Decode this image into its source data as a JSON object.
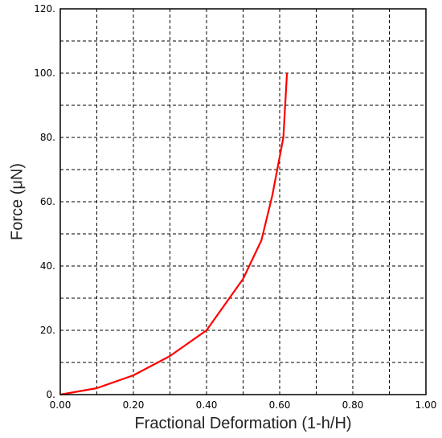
{
  "chart_data": {
    "type": "line",
    "title": "",
    "xlabel": "Fractional Deformation (1-h/H)",
    "ylabel": "Force (μN)",
    "xlim": [
      0.0,
      1.0
    ],
    "ylim": [
      0,
      120
    ],
    "grid": true,
    "grid_style": "dashed",
    "x_ticks": [
      0.0,
      0.1,
      0.2,
      0.3,
      0.4,
      0.5,
      0.6,
      0.7,
      0.8,
      0.9,
      1.0
    ],
    "x_tick_labels": [
      "0.00",
      "",
      "0.20",
      "",
      "0.40",
      "",
      "0.60",
      "",
      "0.80",
      "",
      "1.00"
    ],
    "y_ticks": [
      0,
      10,
      20,
      30,
      40,
      50,
      60,
      70,
      80,
      90,
      100,
      110,
      120
    ],
    "y_tick_labels": [
      "0.",
      "",
      "20.",
      "",
      "40.",
      "",
      "60.",
      "",
      "80.",
      "",
      "100.",
      "",
      "120."
    ],
    "series": [
      {
        "color": "#ff0000",
        "x": [
          0.0,
          0.1,
          0.2,
          0.3,
          0.4,
          0.5,
          0.55,
          0.58,
          0.61,
          0.62
        ],
        "y": [
          0,
          2,
          6,
          12,
          20,
          36,
          48,
          62,
          80,
          100
        ]
      }
    ]
  }
}
